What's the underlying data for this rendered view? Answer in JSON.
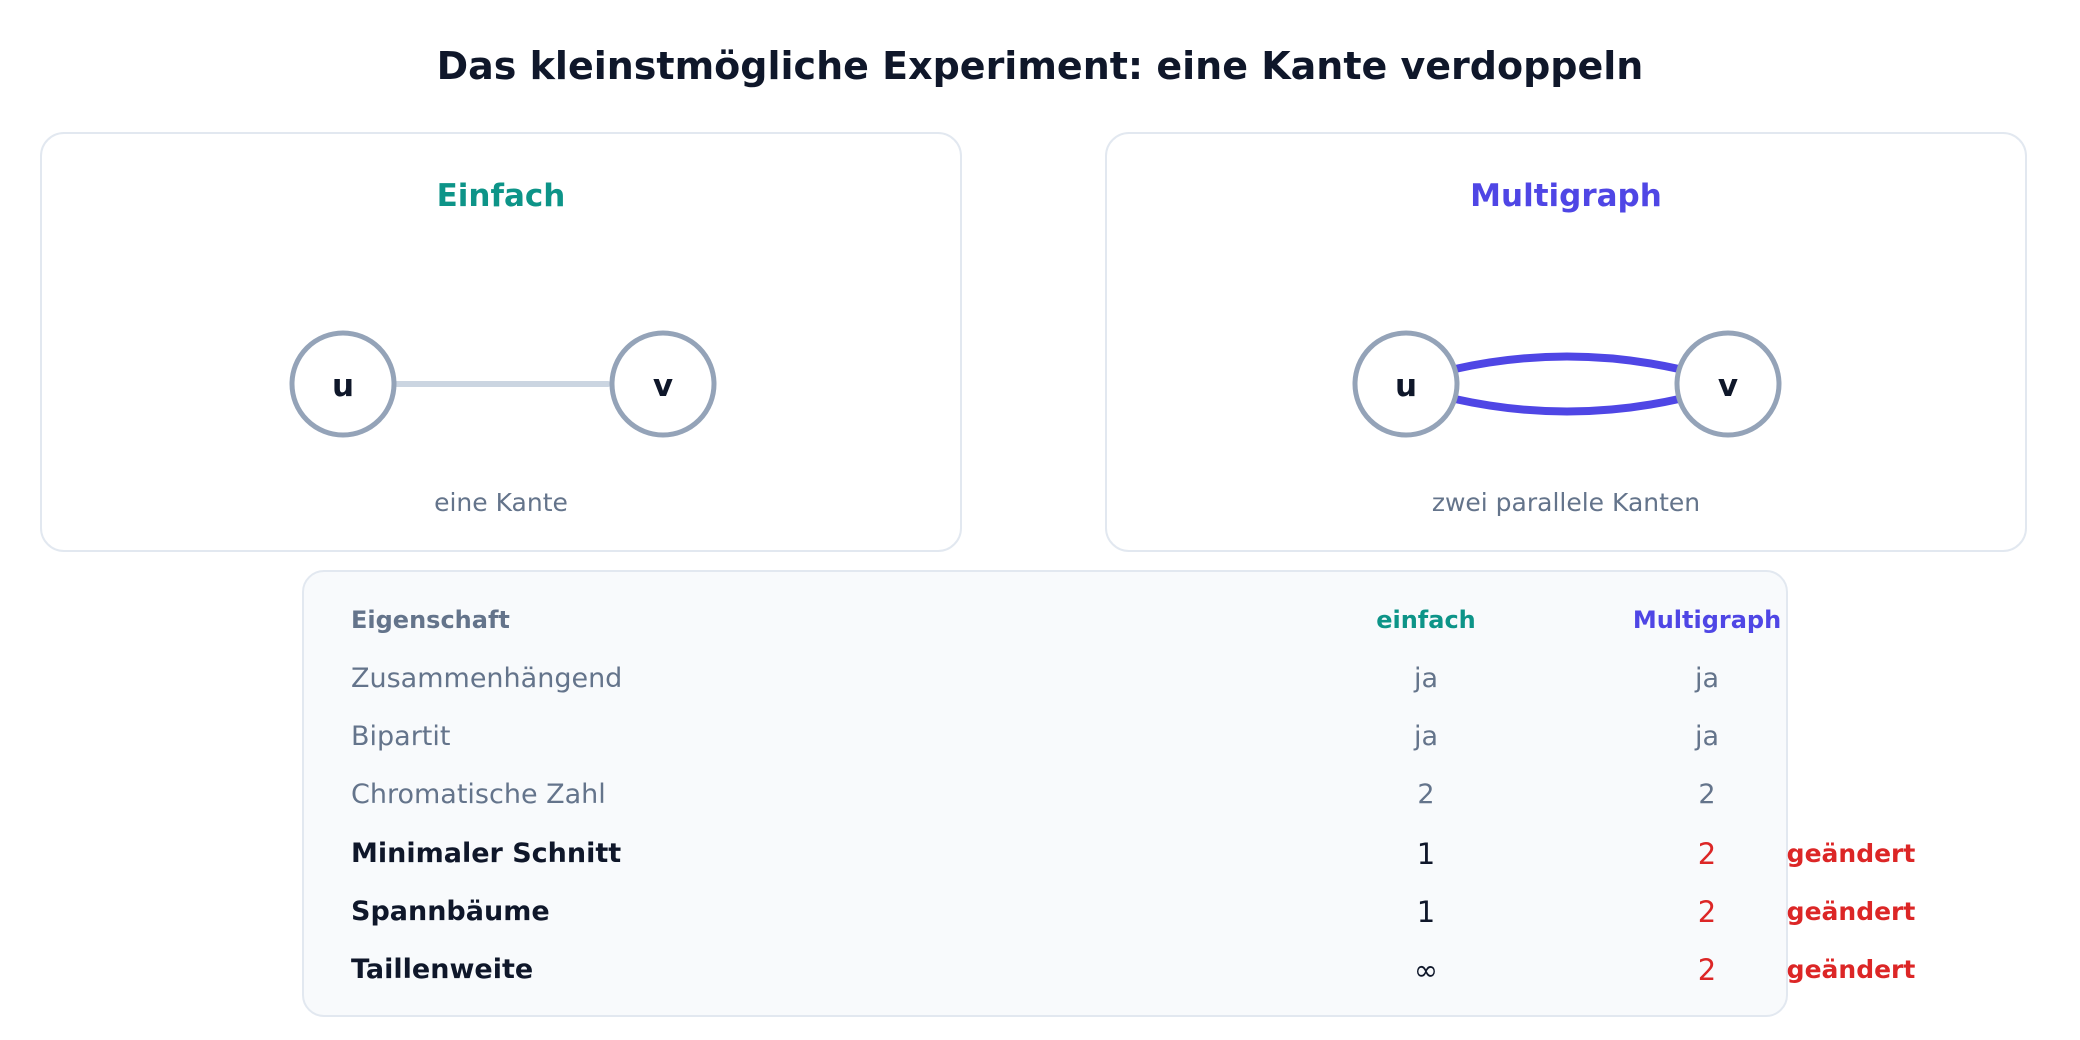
{
  "title": "Das kleinstmögliche Experiment: eine Kante verdoppeln",
  "colors": {
    "simple_accent": "#0d9488",
    "multi_accent": "#4f46e5",
    "node_stroke": "#94a3b8",
    "simple_edge": "#cbd5e1",
    "changed": "#dc2626"
  },
  "panels": {
    "simple": {
      "title": "Einfach",
      "caption": "eine Kante",
      "nodes": [
        "u",
        "v"
      ],
      "edge_count": 1
    },
    "multi": {
      "title": "Multigraph",
      "caption": "zwei parallele Kanten",
      "nodes": [
        "u",
        "v"
      ],
      "edge_count": 2
    }
  },
  "table": {
    "headers": {
      "property": "Eigenschaft",
      "simple": "einfach",
      "multi": "Multigraph"
    },
    "rows": [
      {
        "property": "Zusammenhängend",
        "simple": "ja",
        "multi": "ja",
        "flag": ""
      },
      {
        "property": "Bipartit",
        "simple": "ja",
        "multi": "ja",
        "flag": ""
      },
      {
        "property": "Chromatische Zahl",
        "simple": "2",
        "multi": "2",
        "flag": ""
      },
      {
        "property": "Minimaler Schnitt",
        "simple": "1",
        "multi": "2",
        "flag": "geändert"
      },
      {
        "property": "Spannbäume",
        "simple": "1",
        "multi": "2",
        "flag": "geändert"
      },
      {
        "property": "Taillenweite",
        "simple": "∞",
        "multi": "2",
        "flag": "geändert"
      }
    ]
  }
}
